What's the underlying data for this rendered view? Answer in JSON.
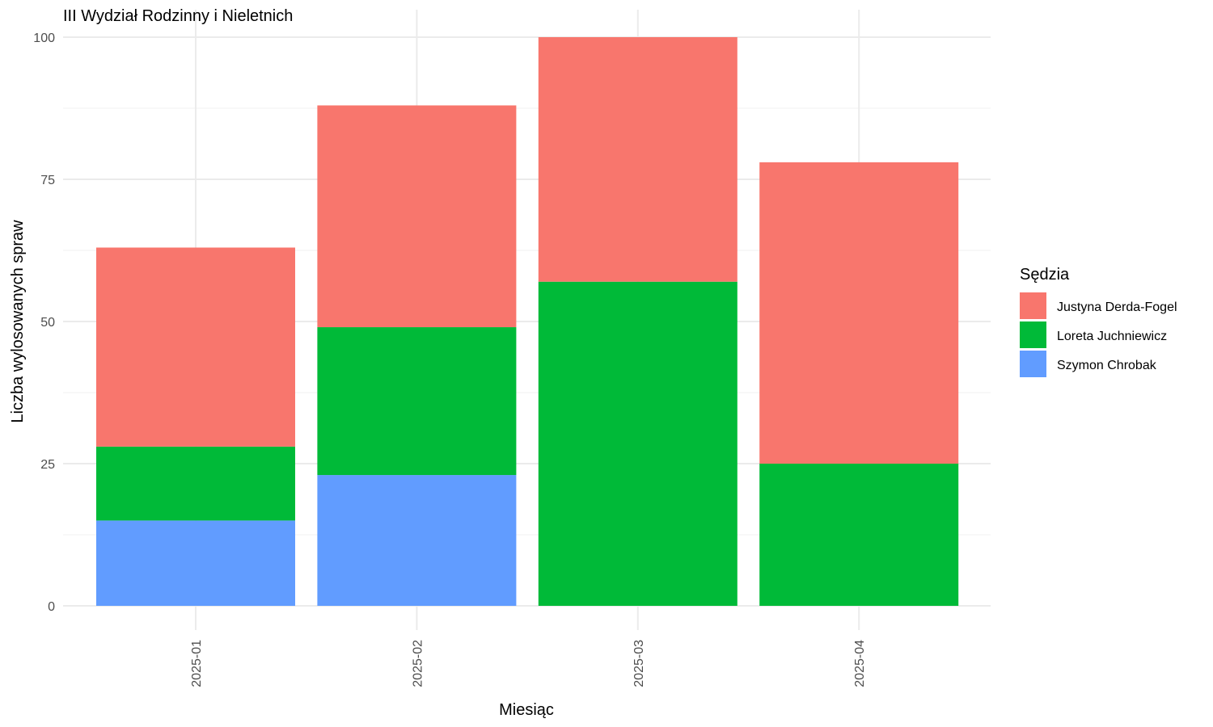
{
  "chart_data": {
    "type": "bar",
    "stacked": true,
    "title": "III Wydział Rodzinny i Nieletnich",
    "xlabel": "Miesiąc",
    "ylabel": "Liczba wylosowanych spraw",
    "categories": [
      "2025-01",
      "2025-02",
      "2025-03",
      "2025-04"
    ],
    "ylim": [
      0,
      100
    ],
    "yticks": [
      0,
      25,
      50,
      75,
      100
    ],
    "grid": true,
    "legend": {
      "title": "Sędzia",
      "position": "right"
    },
    "series": [
      {
        "name": "Szymon Chrobak",
        "color": "#619CFF",
        "values": [
          15,
          23,
          0,
          0
        ]
      },
      {
        "name": "Loreta Juchniewicz",
        "color": "#00BA38",
        "values": [
          13,
          26,
          57,
          25
        ]
      },
      {
        "name": "Justyna Derda-Fogel",
        "color": "#F8766D",
        "values": [
          35,
          39,
          43,
          53
        ]
      }
    ],
    "legend_order": [
      "Justyna Derda-Fogel",
      "Loreta Juchniewicz",
      "Szymon Chrobak"
    ]
  }
}
